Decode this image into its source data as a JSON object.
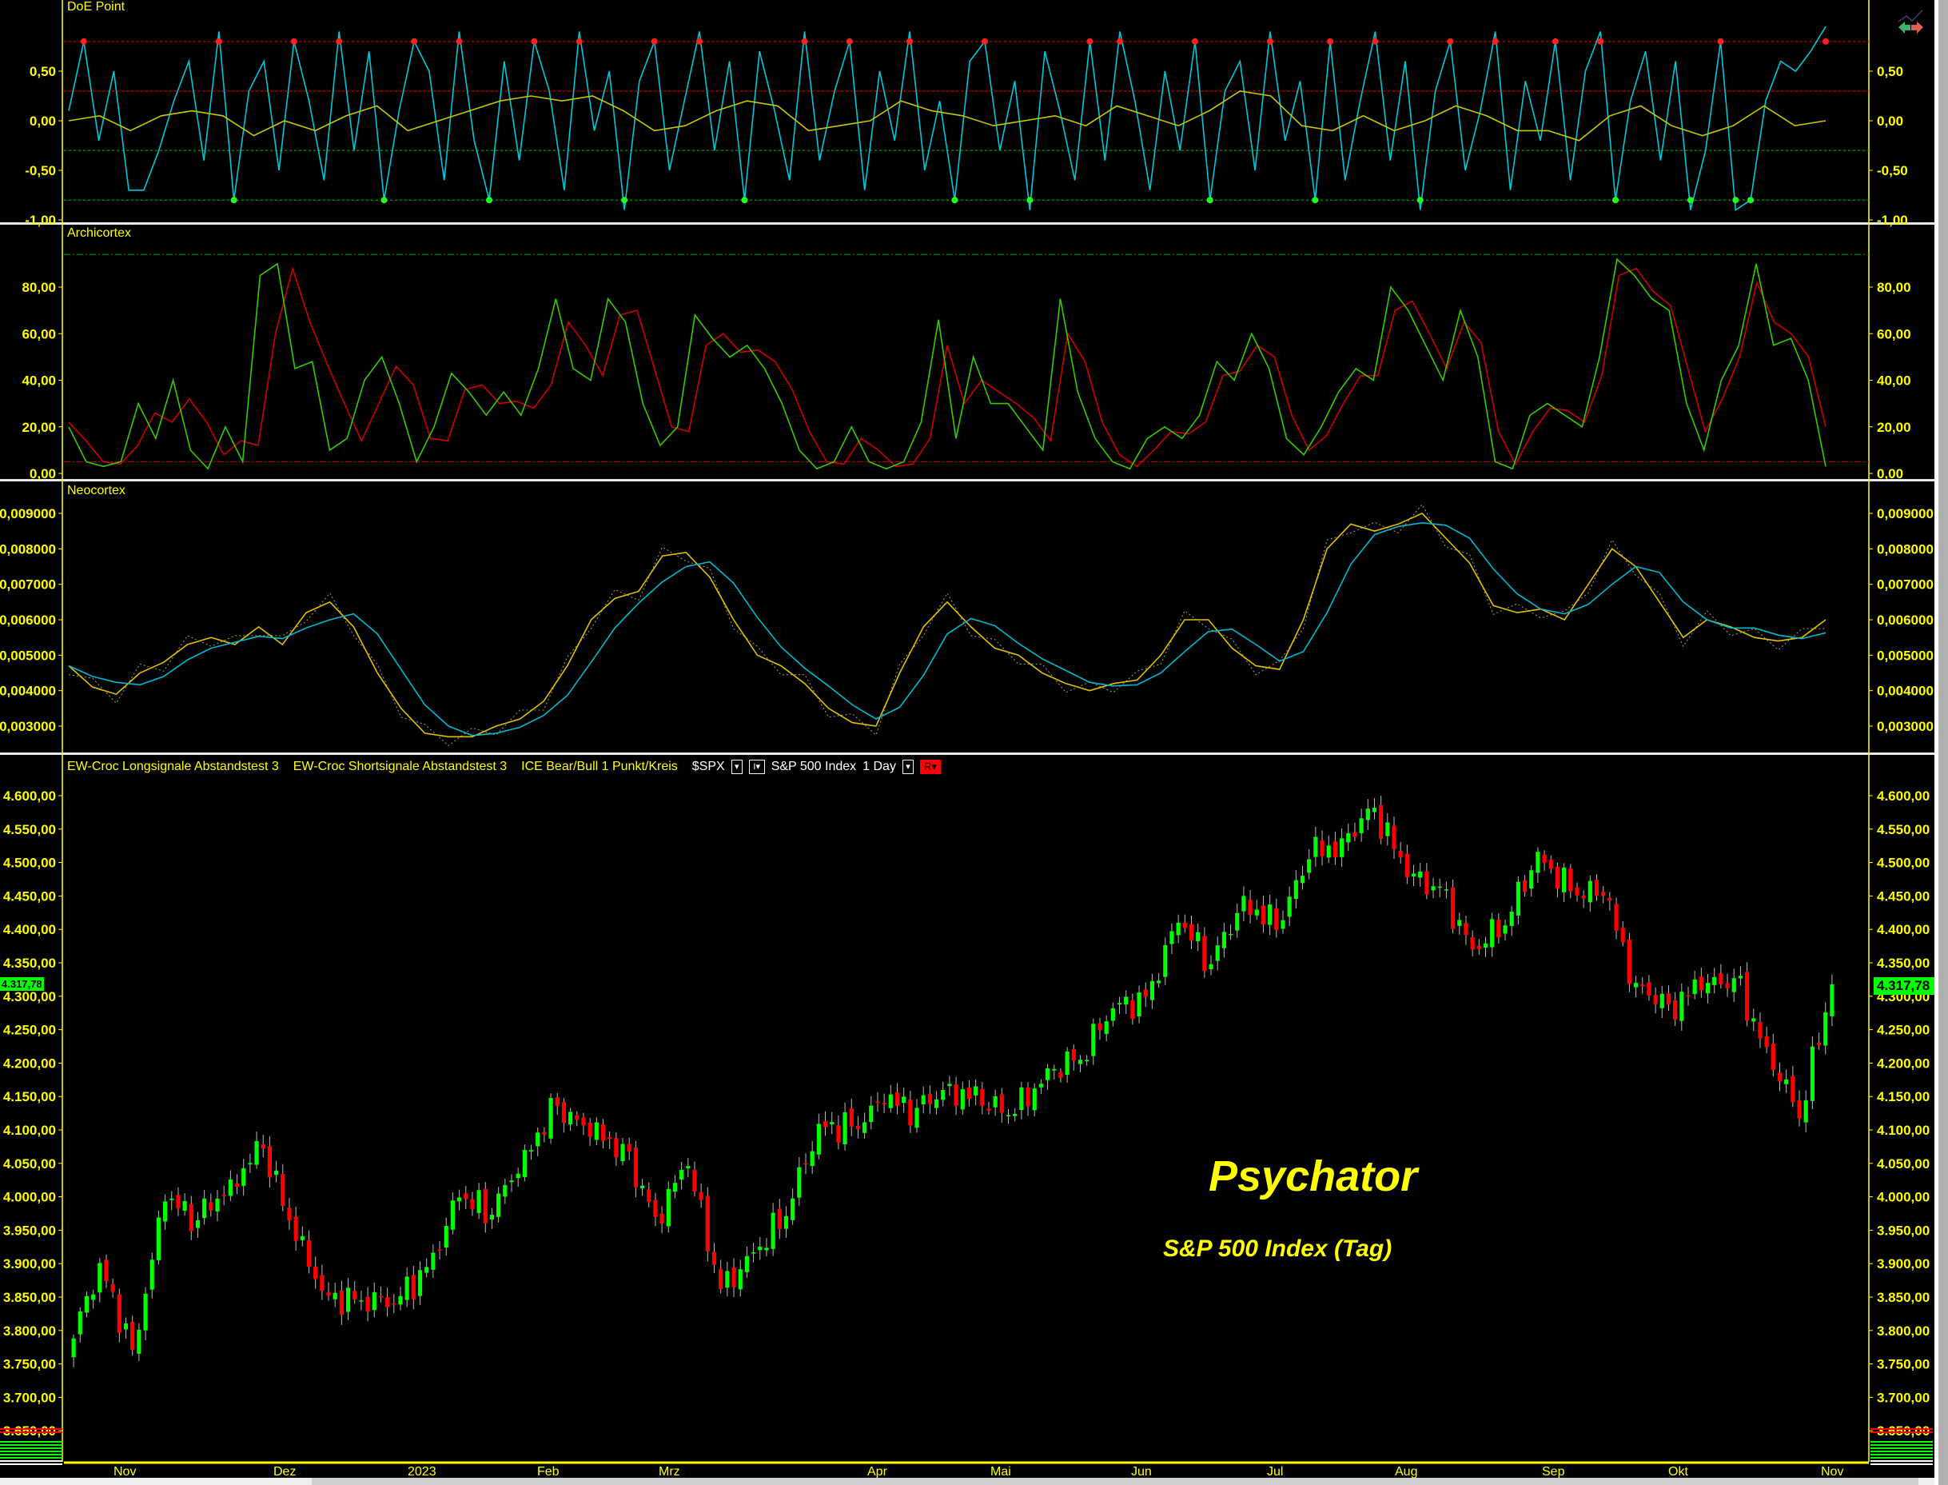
{
  "panels": {
    "doe": {
      "title": "DoE Point",
      "ticks": [
        0.5,
        0,
        -0.5,
        -1
      ],
      "tick_labels": [
        "0,50",
        "0,00",
        "-0,50",
        "-1,00"
      ],
      "upper_levels": [
        0.8,
        0.3
      ],
      "lower_levels": [
        -0.3,
        -0.8
      ]
    },
    "archicortex": {
      "title": "Archicortex",
      "ticks": [
        80,
        60,
        40,
        20,
        0
      ],
      "tick_labels": [
        "80,00",
        "60,00",
        "40,00",
        "20,00",
        "0,00"
      ],
      "upper_level": 94,
      "lower_level": 5
    },
    "neocortex": {
      "title": "Neocortex",
      "ticks": [
        0.009,
        0.008,
        0.007,
        0.006,
        0.005,
        0.004,
        0.003
      ],
      "tick_labels": [
        "0,009000",
        "0,008000",
        "0,007000",
        "0,006000",
        "0,005000",
        "0,004000",
        "0,003000"
      ]
    },
    "price": {
      "ticks": [
        4600,
        4550,
        4500,
        4450,
        4400,
        4350,
        4300,
        4250,
        4200,
        4150,
        4100,
        4050,
        4000,
        3950,
        3900,
        3850,
        3800,
        3750,
        3700,
        3650
      ],
      "tick_labels": [
        "4.600,00",
        "4.550,00",
        "4.500,00",
        "4.450,00",
        "4.400,00",
        "4.350,00",
        "4.300,00",
        "4.250,00",
        "4.200,00",
        "4.150,00",
        "4.100,00",
        "4.050,00",
        "4.000,00",
        "3.950,00",
        "3.900,00",
        "3.850,00",
        "3.800,00",
        "3.750,00",
        "3.700,00",
        "3.650,00"
      ],
      "last_price": "4.317,78"
    }
  },
  "legend": {
    "long_signals": "EW-Croc Longsignale Abstandstest 3",
    "short_signals": "EW-Croc Shortsignale Abstandstest 3",
    "ice": "ICE Bear/Bull 1 Punkt/Kreis",
    "symbol": "$SPX",
    "dropdown1": "▾",
    "dropdown2": "I▾",
    "instrument": "S&P 500 Index",
    "interval": "1 Day",
    "dropdown3": "▾",
    "r_button": "R▾"
  },
  "watermark": {
    "title": "Psychator",
    "subtitle": "S&P 500 Index (Tag)"
  },
  "x_axis": {
    "months": [
      "Nov",
      "Dez",
      "2023",
      "Feb",
      "Mrz",
      "Apr",
      "Mai",
      "Jun",
      "Jul",
      "Aug",
      "Sep",
      "Okt",
      "Nov"
    ]
  },
  "colors": {
    "up": "#00ff00",
    "down": "#ff0000",
    "axis": "#ffff00",
    "doe_fast": "#00c8d8",
    "doe_slow": "#c8c800",
    "archi_fast": "#33cc00",
    "archi_slow": "#cc0000",
    "neo_main": "#e0c000",
    "neo_signal": "#00b8d0"
  },
  "chart_data": [
    {
      "type": "line",
      "title": "DoE Point",
      "ylim": [
        -1,
        1
      ],
      "series": [
        {
          "values": [
            0.1,
            0.8,
            -0.2,
            0.5,
            -0.7,
            -0.7,
            -0.3,
            0.2,
            0.6,
            -0.4,
            0.9,
            -0.8,
            0.3,
            0.6,
            -0.5,
            0.8,
            0.2,
            -0.6,
            0.9,
            -0.3,
            0.7,
            -0.8,
            0.1,
            0.8,
            0.5,
            -0.6,
            0.9,
            -0.2,
            -0.8,
            0.6,
            -0.4,
            0.8,
            0.3,
            -0.7,
            0.9,
            -0.1,
            0.5,
            -0.9,
            0.4,
            0.8,
            -0.5,
            0.2,
            0.9,
            -0.3,
            0.6,
            -0.8,
            0.7,
            0.1,
            -0.6,
            0.9,
            -0.4,
            0.3,
            0.8,
            -0.7,
            0.5,
            -0.2,
            0.9,
            -0.5,
            0.2,
            -0.8,
            0.6,
            0.8,
            -0.3,
            0.4,
            -0.9,
            0.7,
            0.1,
            -0.6,
            0.8,
            -0.4,
            0.9,
            0.2,
            -0.7,
            0.5,
            -0.3,
            0.8,
            -0.8,
            0.3,
            0.6,
            -0.5,
            0.9,
            -0.2,
            0.4,
            -0.8,
            0.8,
            -0.6,
            0.2,
            0.9,
            -0.4,
            0.6,
            -0.9,
            0.3,
            0.8,
            -0.5,
            0.1,
            0.9,
            -0.7,
            0.4,
            -0.2,
            0.8,
            -0.6,
            0.5,
            0.9,
            -0.8,
            0.2,
            0.7,
            -0.4,
            0.6,
            -0.9,
            -0.3,
            0.8,
            -0.9,
            -0.8,
            0.2,
            0.6,
            0.5,
            0.7,
            0.95
          ]
        },
        {
          "values": [
            0,
            0.05,
            -0.1,
            0.05,
            0.1,
            0.05,
            -0.15,
            0,
            -0.1,
            0.05,
            0.15,
            -0.1,
            0,
            0.1,
            0.2,
            0.25,
            0.2,
            0.25,
            0.1,
            -0.1,
            -0.05,
            0.1,
            0.2,
            0.15,
            -0.1,
            -0.05,
            0,
            0.2,
            0.1,
            0.05,
            -0.05,
            0,
            0.05,
            -0.05,
            0.15,
            0.05,
            -0.05,
            0.1,
            0.3,
            0.25,
            -0.05,
            -0.1,
            0.05,
            -0.1,
            0,
            0.15,
            0.05,
            -0.1,
            -0.1,
            -0.2,
            0.05,
            0.15,
            -0.05,
            -0.15,
            -0.05,
            0.15,
            -0.05,
            0
          ]
        }
      ]
    },
    {
      "type": "line",
      "title": "Archicortex",
      "ylim": [
        0,
        100
      ],
      "series": [
        {
          "values": [
            20,
            5,
            3,
            5,
            30,
            15,
            40,
            10,
            2,
            20,
            5,
            85,
            90,
            45,
            48,
            10,
            15,
            40,
            50,
            30,
            5,
            20,
            43,
            35,
            25,
            35,
            25,
            45,
            75,
            45,
            40,
            75,
            65,
            30,
            12,
            20,
            68,
            58,
            50,
            55,
            45,
            30,
            10,
            2,
            5,
            20,
            5,
            2,
            5,
            22,
            66,
            15,
            50,
            30,
            30,
            20,
            10,
            75,
            35,
            15,
            5,
            2,
            15,
            20,
            15,
            25,
            48,
            40,
            60,
            45,
            15,
            8,
            20,
            35,
            45,
            40,
            80,
            70,
            55,
            40,
            70,
            50,
            5,
            2,
            25,
            30,
            25,
            20,
            50,
            92,
            85,
            75,
            70,
            30,
            10,
            40,
            55,
            90,
            55,
            58,
            40,
            3
          ]
        },
        {
          "values": [
            22,
            14,
            5,
            4,
            12,
            26,
            22,
            32,
            22,
            8,
            14,
            12,
            60,
            88,
            65,
            47,
            30,
            14,
            30,
            46,
            38,
            15,
            14,
            36,
            38,
            30,
            31,
            28,
            38,
            65,
            55,
            42,
            68,
            70,
            45,
            20,
            18,
            55,
            60,
            52,
            53,
            48,
            36,
            18,
            5,
            4,
            15,
            10,
            3,
            4,
            15,
            55,
            30,
            40,
            35,
            30,
            24,
            14,
            60,
            48,
            22,
            8,
            3,
            10,
            18,
            17,
            22,
            42,
            44,
            55,
            50,
            25,
            10,
            16,
            30,
            42,
            42,
            70,
            74,
            60,
            45,
            65,
            56,
            18,
            4,
            18,
            28,
            27,
            22,
            42,
            85,
            88,
            78,
            72,
            45,
            18,
            32,
            50,
            82,
            65,
            60,
            50,
            20
          ]
        }
      ]
    },
    {
      "type": "line",
      "title": "Neocortex",
      "ylim": [
        0.0025,
        0.0095
      ],
      "series": [
        {
          "values": [
            0.0047,
            0.0041,
            0.0039,
            0.0045,
            0.0048,
            0.0053,
            0.0055,
            0.0053,
            0.0058,
            0.0053,
            0.0062,
            0.0065,
            0.0058,
            0.0045,
            0.0035,
            0.0028,
            0.0027,
            0.0027,
            0.003,
            0.0032,
            0.0037,
            0.0047,
            0.006,
            0.0066,
            0.0068,
            0.0078,
            0.0079,
            0.0072,
            0.006,
            0.005,
            0.0047,
            0.0042,
            0.0035,
            0.0031,
            0.003,
            0.0045,
            0.0058,
            0.0065,
            0.0058,
            0.0052,
            0.005,
            0.0045,
            0.0042,
            0.004,
            0.0042,
            0.0043,
            0.005,
            0.006,
            0.006,
            0.0052,
            0.0047,
            0.0046,
            0.006,
            0.008,
            0.0087,
            0.0085,
            0.0087,
            0.009,
            0.0083,
            0.0076,
            0.0064,
            0.0062,
            0.0063,
            0.006,
            0.007,
            0.008,
            0.0075,
            0.0065,
            0.0055,
            0.006,
            0.0058,
            0.0055,
            0.0054,
            0.0055,
            0.006
          ]
        }
      ]
    },
    {
      "type": "candlestick",
      "title": "S&P 500 Index",
      "ylim": [
        3630,
        4630
      ],
      "x_start": "2022-10-24",
      "x_end": "2023-11-02",
      "weekly_closes": [
        [
          "2022-10-28",
          3901
        ],
        [
          "2022-11-04",
          3771
        ],
        [
          "2022-11-11",
          3993
        ],
        [
          "2022-11-18",
          3965
        ],
        [
          "2022-11-25",
          4026
        ],
        [
          "2022-12-02",
          4072
        ],
        [
          "2022-12-09",
          3934
        ],
        [
          "2022-12-16",
          3852
        ],
        [
          "2022-12-23",
          3845
        ],
        [
          "2022-12-30",
          3840
        ],
        [
          "2023-01-06",
          3895
        ],
        [
          "2023-01-13",
          3999
        ],
        [
          "2023-01-20",
          3973
        ],
        [
          "2023-01-27",
          4070
        ],
        [
          "2023-02-03",
          4136
        ],
        [
          "2023-02-10",
          4090
        ],
        [
          "2023-02-17",
          4079
        ],
        [
          "2023-02-24",
          3970
        ],
        [
          "2023-03-03",
          4046
        ],
        [
          "2023-03-10",
          3862
        ],
        [
          "2023-03-17",
          3917
        ],
        [
          "2023-03-24",
          3971
        ],
        [
          "2023-03-31",
          4109
        ],
        [
          "2023-04-06",
          4105
        ],
        [
          "2023-04-14",
          4138
        ],
        [
          "2023-04-21",
          4133
        ],
        [
          "2023-04-28",
          4169
        ],
        [
          "2023-05-05",
          4136
        ],
        [
          "2023-05-12",
          4124
        ],
        [
          "2023-05-19",
          4192
        ],
        [
          "2023-05-26",
          4205
        ],
        [
          "2023-06-02",
          4282
        ],
        [
          "2023-06-09",
          4299
        ],
        [
          "2023-06-16",
          4410
        ],
        [
          "2023-06-23",
          4348
        ],
        [
          "2023-06-30",
          4450
        ],
        [
          "2023-07-07",
          4399
        ],
        [
          "2023-07-14",
          4505
        ],
        [
          "2023-07-21",
          4536
        ],
        [
          "2023-07-28",
          4582
        ],
        [
          "2023-08-04",
          4478
        ],
        [
          "2023-08-11",
          4464
        ],
        [
          "2023-08-18",
          4370
        ],
        [
          "2023-08-25",
          4406
        ],
        [
          "2023-09-01",
          4516
        ],
        [
          "2023-09-08",
          4457
        ],
        [
          "2023-09-15",
          4450
        ],
        [
          "2023-09-22",
          4320
        ],
        [
          "2023-09-29",
          4288
        ],
        [
          "2023-10-06",
          4309
        ],
        [
          "2023-10-13",
          4327
        ],
        [
          "2023-10-20",
          4224
        ],
        [
          "2023-10-27",
          4117
        ],
        [
          "2023-11-02",
          4317.78
        ]
      ],
      "first_open": 3760
    }
  ]
}
